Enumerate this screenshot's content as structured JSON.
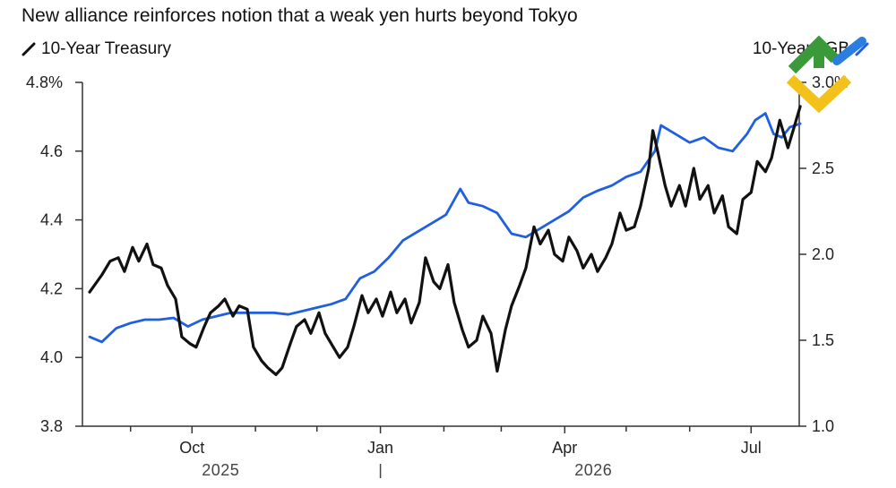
{
  "title": "New alliance reinforces notion that a weak yen hurts beyond Tokyo",
  "legend": {
    "left": {
      "label": "10-Year Treasury",
      "icon": "slash-line-icon",
      "color": "#111111"
    },
    "right": {
      "label": "10-Year JGB",
      "icon": "slash-line-icon",
      "color": "#1f5fe0"
    }
  },
  "chart_data": {
    "type": "line",
    "title": "New alliance reinforces notion that a weak yen hurts beyond Tokyo",
    "x_axis": {
      "ticks": [
        "Oct",
        "Jan",
        "Apr",
        "Jul"
      ],
      "tick_dates": [
        "2025-10-01",
        "2026-01-01",
        "2026-04-01",
        "2026-07-01"
      ],
      "year_labels": [
        "2025",
        "2026"
      ],
      "range": [
        "2025-08-12",
        "2026-07-28"
      ]
    },
    "y_axis_left": {
      "unit": "%",
      "ticks": [
        "4.8%",
        "4.6",
        "4.4",
        "4.2",
        "4.0",
        "3.8"
      ],
      "range": [
        3.8,
        4.8
      ]
    },
    "y_axis_right": {
      "ticks": [
        "3.0%",
        "2.5",
        "2.0",
        "1.5",
        "1.0"
      ],
      "range": [
        1.0,
        3.0
      ]
    },
    "grid": false,
    "series": [
      {
        "name": "10-Year Treasury",
        "axis": "left",
        "color": "#111111",
        "points": [
          [
            "2025-08-12",
            4.19
          ],
          [
            "2025-08-18",
            4.24
          ],
          [
            "2025-08-22",
            4.28
          ],
          [
            "2025-08-26",
            4.29
          ],
          [
            "2025-08-29",
            4.25
          ],
          [
            "2025-09-02",
            4.32
          ],
          [
            "2025-09-05",
            4.28
          ],
          [
            "2025-09-09",
            4.33
          ],
          [
            "2025-09-12",
            4.27
          ],
          [
            "2025-09-16",
            4.26
          ],
          [
            "2025-09-19",
            4.21
          ],
          [
            "2025-09-23",
            4.17
          ],
          [
            "2025-09-26",
            4.06
          ],
          [
            "2025-09-30",
            4.04
          ],
          [
            "2025-10-03",
            4.03
          ],
          [
            "2025-10-07",
            4.09
          ],
          [
            "2025-10-10",
            4.13
          ],
          [
            "2025-10-14",
            4.15
          ],
          [
            "2025-10-17",
            4.17
          ],
          [
            "2025-10-21",
            4.12
          ],
          [
            "2025-10-24",
            4.15
          ],
          [
            "2025-10-28",
            4.14
          ],
          [
            "2025-10-31",
            4.03
          ],
          [
            "2025-11-04",
            3.99
          ],
          [
            "2025-11-07",
            3.97
          ],
          [
            "2025-11-11",
            3.95
          ],
          [
            "2025-11-14",
            3.97
          ],
          [
            "2025-11-18",
            4.04
          ],
          [
            "2025-11-21",
            4.09
          ],
          [
            "2025-11-25",
            4.11
          ],
          [
            "2025-11-28",
            4.07
          ],
          [
            "2025-12-02",
            4.13
          ],
          [
            "2025-12-05",
            4.07
          ],
          [
            "2025-12-09",
            4.03
          ],
          [
            "2025-12-12",
            4.0
          ],
          [
            "2025-12-16",
            4.03
          ],
          [
            "2025-12-19",
            4.09
          ],
          [
            "2025-12-23",
            4.18
          ],
          [
            "2025-12-26",
            4.13
          ],
          [
            "2025-12-30",
            4.17
          ],
          [
            "2026-01-02",
            4.12
          ],
          [
            "2026-01-06",
            4.19
          ],
          [
            "2026-01-09",
            4.13
          ],
          [
            "2026-01-13",
            4.17
          ],
          [
            "2026-01-16",
            4.1
          ],
          [
            "2026-01-20",
            4.16
          ],
          [
            "2026-01-23",
            4.29
          ],
          [
            "2026-01-27",
            4.22
          ],
          [
            "2026-01-30",
            4.2
          ],
          [
            "2026-02-03",
            4.27
          ],
          [
            "2026-02-06",
            4.16
          ],
          [
            "2026-02-10",
            4.08
          ],
          [
            "2026-02-13",
            4.03
          ],
          [
            "2026-02-17",
            4.05
          ],
          [
            "2026-02-20",
            4.12
          ],
          [
            "2026-02-24",
            4.07
          ],
          [
            "2026-02-27",
            3.96
          ],
          [
            "2026-03-03",
            4.08
          ],
          [
            "2026-03-06",
            4.15
          ],
          [
            "2026-03-10",
            4.21
          ],
          [
            "2026-03-13",
            4.26
          ],
          [
            "2026-03-17",
            4.38
          ],
          [
            "2026-03-20",
            4.33
          ],
          [
            "2026-03-24",
            4.37
          ],
          [
            "2026-03-27",
            4.3
          ],
          [
            "2026-03-31",
            4.28
          ],
          [
            "2026-04-03",
            4.35
          ],
          [
            "2026-04-07",
            4.31
          ],
          [
            "2026-04-10",
            4.26
          ],
          [
            "2026-04-14",
            4.3
          ],
          [
            "2026-04-17",
            4.25
          ],
          [
            "2026-04-21",
            4.29
          ],
          [
            "2026-04-24",
            4.33
          ],
          [
            "2026-04-28",
            4.42
          ],
          [
            "2026-05-01",
            4.37
          ],
          [
            "2026-05-05",
            4.38
          ],
          [
            "2026-05-08",
            4.44
          ],
          [
            "2026-05-12",
            4.55
          ],
          [
            "2026-05-14",
            4.66
          ],
          [
            "2026-05-16",
            4.61
          ],
          [
            "2026-05-20",
            4.5
          ],
          [
            "2026-05-23",
            4.44
          ],
          [
            "2026-05-27",
            4.5
          ],
          [
            "2026-05-30",
            4.44
          ],
          [
            "2026-06-03",
            4.55
          ],
          [
            "2026-06-06",
            4.46
          ],
          [
            "2026-06-10",
            4.5
          ],
          [
            "2026-06-13",
            4.42
          ],
          [
            "2026-06-17",
            4.47
          ],
          [
            "2026-06-20",
            4.38
          ],
          [
            "2026-06-24",
            4.36
          ],
          [
            "2026-06-27",
            4.46
          ],
          [
            "2026-07-01",
            4.48
          ],
          [
            "2026-07-04",
            4.57
          ],
          [
            "2026-07-08",
            4.54
          ],
          [
            "2026-07-11",
            4.58
          ],
          [
            "2026-07-15",
            4.69
          ],
          [
            "2026-07-19",
            4.61
          ],
          [
            "2026-07-22",
            4.67
          ],
          [
            "2026-07-25",
            4.73
          ]
        ]
      },
      {
        "name": "10-Year JGB",
        "axis": "right",
        "color": "#1f5fe0",
        "points": [
          [
            "2025-08-12",
            1.52
          ],
          [
            "2025-08-18",
            1.49
          ],
          [
            "2025-08-25",
            1.57
          ],
          [
            "2025-09-01",
            1.6
          ],
          [
            "2025-09-08",
            1.62
          ],
          [
            "2025-09-15",
            1.62
          ],
          [
            "2025-09-22",
            1.63
          ],
          [
            "2025-09-29",
            1.58
          ],
          [
            "2025-10-06",
            1.62
          ],
          [
            "2025-10-13",
            1.64
          ],
          [
            "2025-10-20",
            1.66
          ],
          [
            "2025-10-27",
            1.66
          ],
          [
            "2025-11-03",
            1.66
          ],
          [
            "2025-11-10",
            1.66
          ],
          [
            "2025-11-17",
            1.65
          ],
          [
            "2025-11-24",
            1.67
          ],
          [
            "2025-12-01",
            1.69
          ],
          [
            "2025-12-08",
            1.71
          ],
          [
            "2025-12-15",
            1.74
          ],
          [
            "2025-12-22",
            1.86
          ],
          [
            "2025-12-29",
            1.9
          ],
          [
            "2026-01-05",
            1.98
          ],
          [
            "2026-01-12",
            2.08
          ],
          [
            "2026-01-19",
            2.13
          ],
          [
            "2026-01-26",
            2.18
          ],
          [
            "2026-02-02",
            2.23
          ],
          [
            "2026-02-09",
            2.38
          ],
          [
            "2026-02-13",
            2.3
          ],
          [
            "2026-02-20",
            2.28
          ],
          [
            "2026-02-27",
            2.24
          ],
          [
            "2026-03-06",
            2.12
          ],
          [
            "2026-03-13",
            2.1
          ],
          [
            "2026-03-20",
            2.15
          ],
          [
            "2026-03-27",
            2.2
          ],
          [
            "2026-04-03",
            2.25
          ],
          [
            "2026-04-10",
            2.33
          ],
          [
            "2026-04-17",
            2.37
          ],
          [
            "2026-04-24",
            2.4
          ],
          [
            "2026-05-01",
            2.45
          ],
          [
            "2026-05-08",
            2.48
          ],
          [
            "2026-05-15",
            2.6
          ],
          [
            "2026-05-18",
            2.75
          ],
          [
            "2026-05-25",
            2.7
          ],
          [
            "2026-06-01",
            2.65
          ],
          [
            "2026-06-08",
            2.68
          ],
          [
            "2026-06-15",
            2.62
          ],
          [
            "2026-06-22",
            2.6
          ],
          [
            "2026-06-29",
            2.7
          ],
          [
            "2026-07-03",
            2.78
          ],
          [
            "2026-07-08",
            2.82
          ],
          [
            "2026-07-12",
            2.7
          ],
          [
            "2026-07-16",
            2.68
          ],
          [
            "2026-07-20",
            2.74
          ],
          [
            "2026-07-25",
            2.76
          ]
        ]
      }
    ]
  }
}
